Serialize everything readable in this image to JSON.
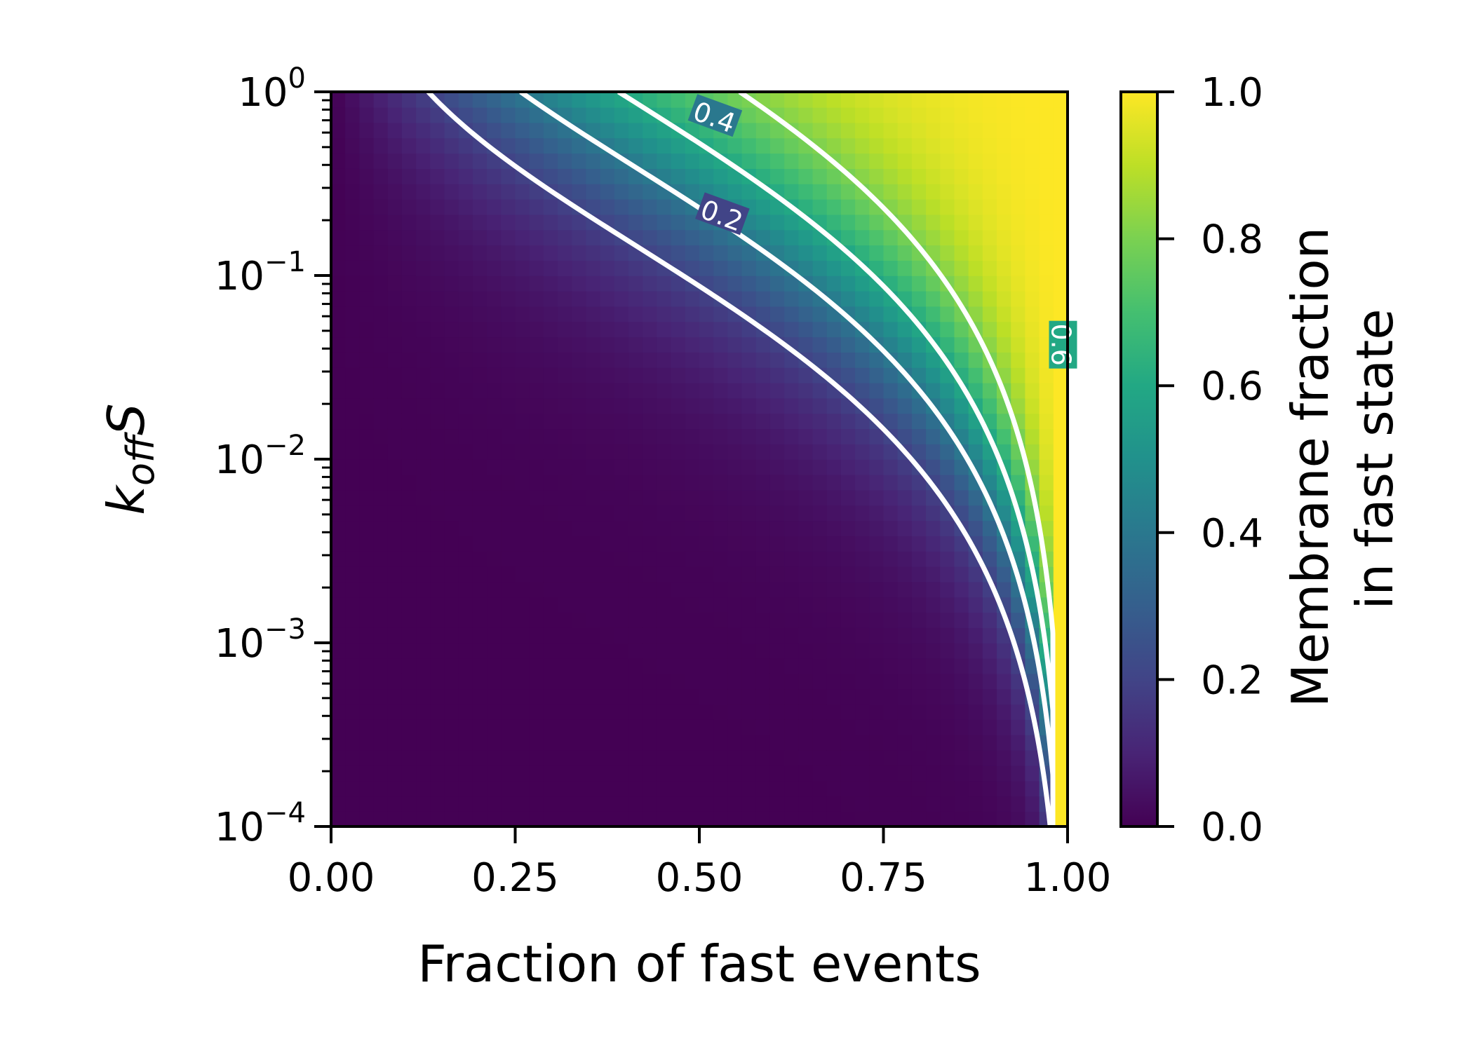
{
  "chart_data": {
    "type": "heatmap",
    "title": "",
    "xlabel": "Fraction of fast events",
    "ylabel": "k_off S",
    "ylabel_main": "k",
    "ylabel_sub": "off",
    "ylabel_tail": "S",
    "xlim": [
      0,
      1
    ],
    "ylim": [
      0.0001,
      1
    ],
    "yscale": "log",
    "grid": false,
    "colormap": "viridis",
    "x_ticks": [
      0,
      0.25,
      0.5,
      0.75,
      1.0
    ],
    "x_tick_labels": [
      "0.00",
      "0.25",
      "0.50",
      "0.75",
      "1.00"
    ],
    "y_ticks": [
      {
        "value": 0.0001,
        "base": "10",
        "exp": "−4"
      },
      {
        "value": 0.001,
        "base": "10",
        "exp": "−3"
      },
      {
        "value": 0.01,
        "base": "10",
        "exp": "−2"
      },
      {
        "value": 0.1,
        "base": "10",
        "exp": "−1"
      },
      {
        "value": 1,
        "base": "10",
        "exp": "0"
      }
    ],
    "colorbar": {
      "label_line1": "Membrane fraction",
      "label_line2": "in fast state",
      "range": [
        0,
        1
      ],
      "ticks": [
        0.0,
        0.2,
        0.4,
        0.6,
        0.8,
        1.0
      ],
      "tick_labels": [
        "0.0",
        "0.2",
        "0.4",
        "0.6",
        "0.8",
        "1.0"
      ]
    },
    "contours": [
      {
        "level": 0.2,
        "label": "0.2",
        "label_at": [
          0.53,
          0.21
        ]
      },
      {
        "level": 0.4,
        "label": "0.4",
        "label_at": [
          0.52,
          0.72
        ]
      },
      {
        "level": 0.6,
        "label": "0.6",
        "label_at": [
          0.99,
          0.042
        ]
      },
      {
        "level": 0.8,
        "label": "",
        "label_at": null
      }
    ],
    "contour_color": "#ffffff"
  }
}
